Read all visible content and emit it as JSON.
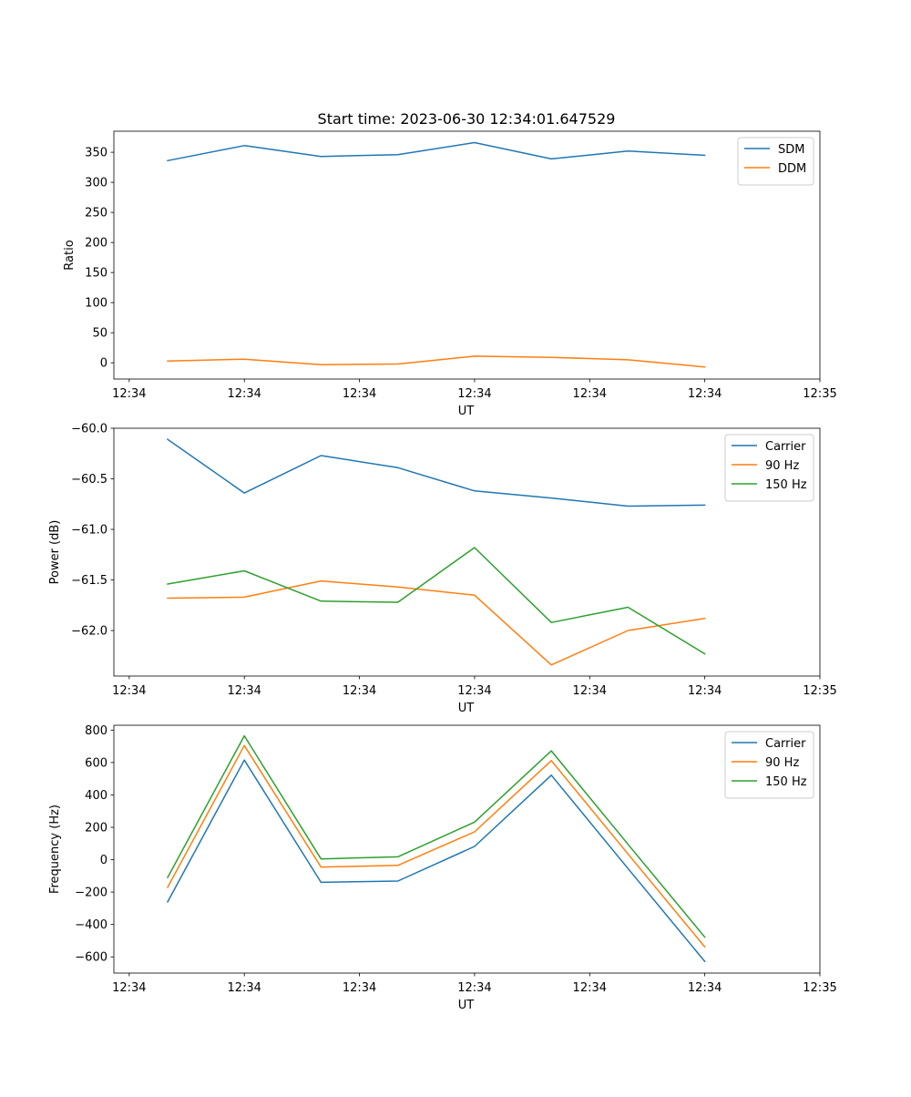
{
  "title": "Start time: 2023-06-30 12:34:01.647529",
  "colors": {
    "blue": "#1f77b4",
    "orange": "#ff7f0e",
    "green": "#2ca02c"
  },
  "chart_data": [
    {
      "type": "line",
      "xlabel": "UT",
      "ylabel": "Ratio",
      "x": [
        1,
        2,
        3,
        4,
        5,
        6,
        7,
        8
      ],
      "xlim": [
        0.3,
        9.5
      ],
      "x_ticks": [
        0.5,
        2.0,
        3.5,
        5.0,
        6.5,
        8.0,
        9.5
      ],
      "x_tick_labels": [
        "12:34",
        "12:34",
        "12:34",
        "12:34",
        "12:34",
        "12:34",
        "12:35"
      ],
      "ylim": [
        -27,
        385
      ],
      "y_ticks": [
        0,
        50,
        100,
        150,
        200,
        250,
        300,
        350
      ],
      "y_tick_labels": [
        "0",
        "50",
        "100",
        "150",
        "200",
        "250",
        "300",
        "350"
      ],
      "grid": false,
      "legend": "top-right",
      "series": [
        {
          "name": "SDM",
          "color": "#1f77b4",
          "values": [
            336,
            361,
            343,
            346,
            366,
            339,
            352,
            345
          ]
        },
        {
          "name": "DDM",
          "color": "#ff7f0e",
          "values": [
            3,
            6,
            -3,
            -2,
            11,
            9,
            5,
            -7
          ]
        }
      ]
    },
    {
      "type": "line",
      "xlabel": "UT",
      "ylabel": "Power (dB)",
      "x": [
        1,
        2,
        3,
        4,
        5,
        6,
        7,
        8
      ],
      "xlim": [
        0.3,
        9.5
      ],
      "x_ticks": [
        0.5,
        2.0,
        3.5,
        5.0,
        6.5,
        8.0,
        9.5
      ],
      "x_tick_labels": [
        "12:34",
        "12:34",
        "12:34",
        "12:34",
        "12:34",
        "12:34",
        "12:35"
      ],
      "ylim": [
        -62.45,
        -60.0
      ],
      "y_ticks": [
        -62.0,
        -61.5,
        -61.0,
        -60.5,
        -60.0
      ],
      "y_tick_labels": [
        "−62.0",
        "−61.5",
        "−61.0",
        "−60.5",
        "−60.0"
      ],
      "grid": false,
      "legend": "top-right",
      "series": [
        {
          "name": "Carrier",
          "color": "#1f77b4",
          "values": [
            -60.11,
            -60.64,
            -60.27,
            -60.39,
            -60.62,
            -60.69,
            -60.77,
            -60.76
          ]
        },
        {
          "name": "90 Hz",
          "color": "#ff7f0e",
          "values": [
            -61.68,
            -61.67,
            -61.51,
            -61.57,
            -61.65,
            -62.34,
            -62.0,
            -61.88
          ]
        },
        {
          "name": "150 Hz",
          "color": "#2ca02c",
          "values": [
            -61.54,
            -61.41,
            -61.71,
            -61.72,
            -61.18,
            -61.92,
            -61.77,
            -62.23
          ]
        }
      ]
    },
    {
      "type": "line",
      "xlabel": "UT",
      "ylabel": "Frequency (Hz)",
      "x": [
        1,
        2,
        3,
        4,
        5,
        6,
        7,
        8
      ],
      "xlim": [
        0.3,
        9.5
      ],
      "x_ticks": [
        0.5,
        2.0,
        3.5,
        5.0,
        6.5,
        8.0,
        9.5
      ],
      "x_tick_labels": [
        "12:34",
        "12:34",
        "12:34",
        "12:34",
        "12:34",
        "12:34",
        "12:35"
      ],
      "ylim": [
        -700,
        830
      ],
      "y_ticks": [
        -600,
        -400,
        -200,
        0,
        200,
        400,
        600,
        800
      ],
      "y_tick_labels": [
        "−600",
        "−400",
        "−200",
        "0",
        "200",
        "400",
        "600",
        "800"
      ],
      "grid": false,
      "legend": "top-right",
      "series": [
        {
          "name": "Carrier",
          "color": "#1f77b4",
          "values": [
            -260,
            615,
            -140,
            -132,
            82,
            522,
            -55,
            -628
          ]
        },
        {
          "name": "90 Hz",
          "color": "#ff7f0e",
          "values": [
            -170,
            705,
            -45,
            -35,
            172,
            612,
            35,
            -538
          ]
        },
        {
          "name": "150 Hz",
          "color": "#2ca02c",
          "values": [
            -110,
            765,
            5,
            18,
            232,
            672,
            95,
            -478
          ]
        }
      ]
    }
  ]
}
